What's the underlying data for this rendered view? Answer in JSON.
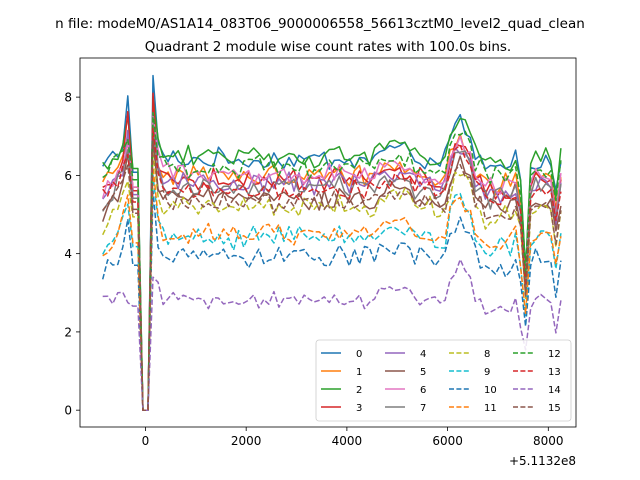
{
  "chart_data": {
    "type": "line",
    "suptitle": "n file: modeM0/AS1A14_083T06_9000006558_56613cztM0_level2_quad_clean",
    "title": "Quadrant 2 module wise count rates with 100.0s bins.",
    "xlabel": "",
    "ylabel": "",
    "x_offset_label": "+5.1132e8",
    "xlim": [
      -1300,
      8550
    ],
    "ylim": [
      -0.43,
      9.0
    ],
    "x_ticks": [
      0,
      2000,
      4000,
      6000,
      8000
    ],
    "x_tick_labels": [
      "0",
      "2000",
      "4000",
      "6000",
      "8000"
    ],
    "y_ticks": [
      0,
      2,
      4,
      6,
      8
    ],
    "y_tick_labels": [
      "0",
      "2",
      "4",
      "6",
      "8"
    ],
    "x_start": -850,
    "x_step": 100,
    "legend": {
      "position": "lower-right",
      "columns": 4
    },
    "series": [
      {
        "name": "0",
        "color": "#1f77b4",
        "style": "solid",
        "base": 6.4,
        "peak": 8.55,
        "t_start": 6.2
      },
      {
        "name": "1",
        "color": "#ff7f0e",
        "style": "solid",
        "base": 6.0,
        "peak": 7.4,
        "t_start": 5.7
      },
      {
        "name": "2",
        "color": "#2ca02c",
        "style": "solid",
        "base": 6.5,
        "peak": 8.0,
        "t_start": 6.1
      },
      {
        "name": "3",
        "color": "#d62728",
        "style": "solid",
        "base": 5.9,
        "peak": 8.1,
        "t_start": 5.6
      },
      {
        "name": "4",
        "color": "#9467bd",
        "style": "solid",
        "base": 5.8,
        "peak": 7.6,
        "t_start": 5.2
      },
      {
        "name": "5",
        "color": "#8c564b",
        "style": "solid",
        "base": 5.4,
        "peak": 7.0,
        "t_start": 5.0
      },
      {
        "name": "6",
        "color": "#e377c2",
        "style": "solid",
        "base": 6.0,
        "peak": 7.5,
        "t_start": 5.5
      },
      {
        "name": "7",
        "color": "#7f7f7f",
        "style": "solid",
        "base": 5.7,
        "peak": 7.3,
        "t_start": 5.3
      },
      {
        "name": "8",
        "color": "#bcbd22",
        "style": "dashed",
        "base": 5.2,
        "peak": 6.6,
        "t_start": 4.6
      },
      {
        "name": "9",
        "color": "#17becf",
        "style": "dashed",
        "base": 4.4,
        "peak": 6.0,
        "t_start": 4.0
      },
      {
        "name": "10",
        "color": "#1f77b4",
        "style": "dashed",
        "base": 3.9,
        "peak": 5.6,
        "t_start": 3.5
      },
      {
        "name": "11",
        "color": "#ff7f0e",
        "style": "dashed",
        "base": 4.5,
        "peak": 6.2,
        "t_start": 4.0
      },
      {
        "name": "12",
        "color": "#2ca02c",
        "style": "dashed",
        "base": 6.2,
        "peak": 7.6,
        "t_start": 5.9
      },
      {
        "name": "13",
        "color": "#d62728",
        "style": "dashed",
        "base": 5.6,
        "peak": 7.2,
        "t_start": 5.5
      },
      {
        "name": "14",
        "color": "#9467bd",
        "style": "dashed",
        "base": 2.8,
        "peak": 3.4,
        "t_start": 2.9
      },
      {
        "name": "15",
        "color": "#8c564b",
        "style": "dashed",
        "base": 5.3,
        "peak": 6.9,
        "t_start": 5.0
      }
    ]
  }
}
